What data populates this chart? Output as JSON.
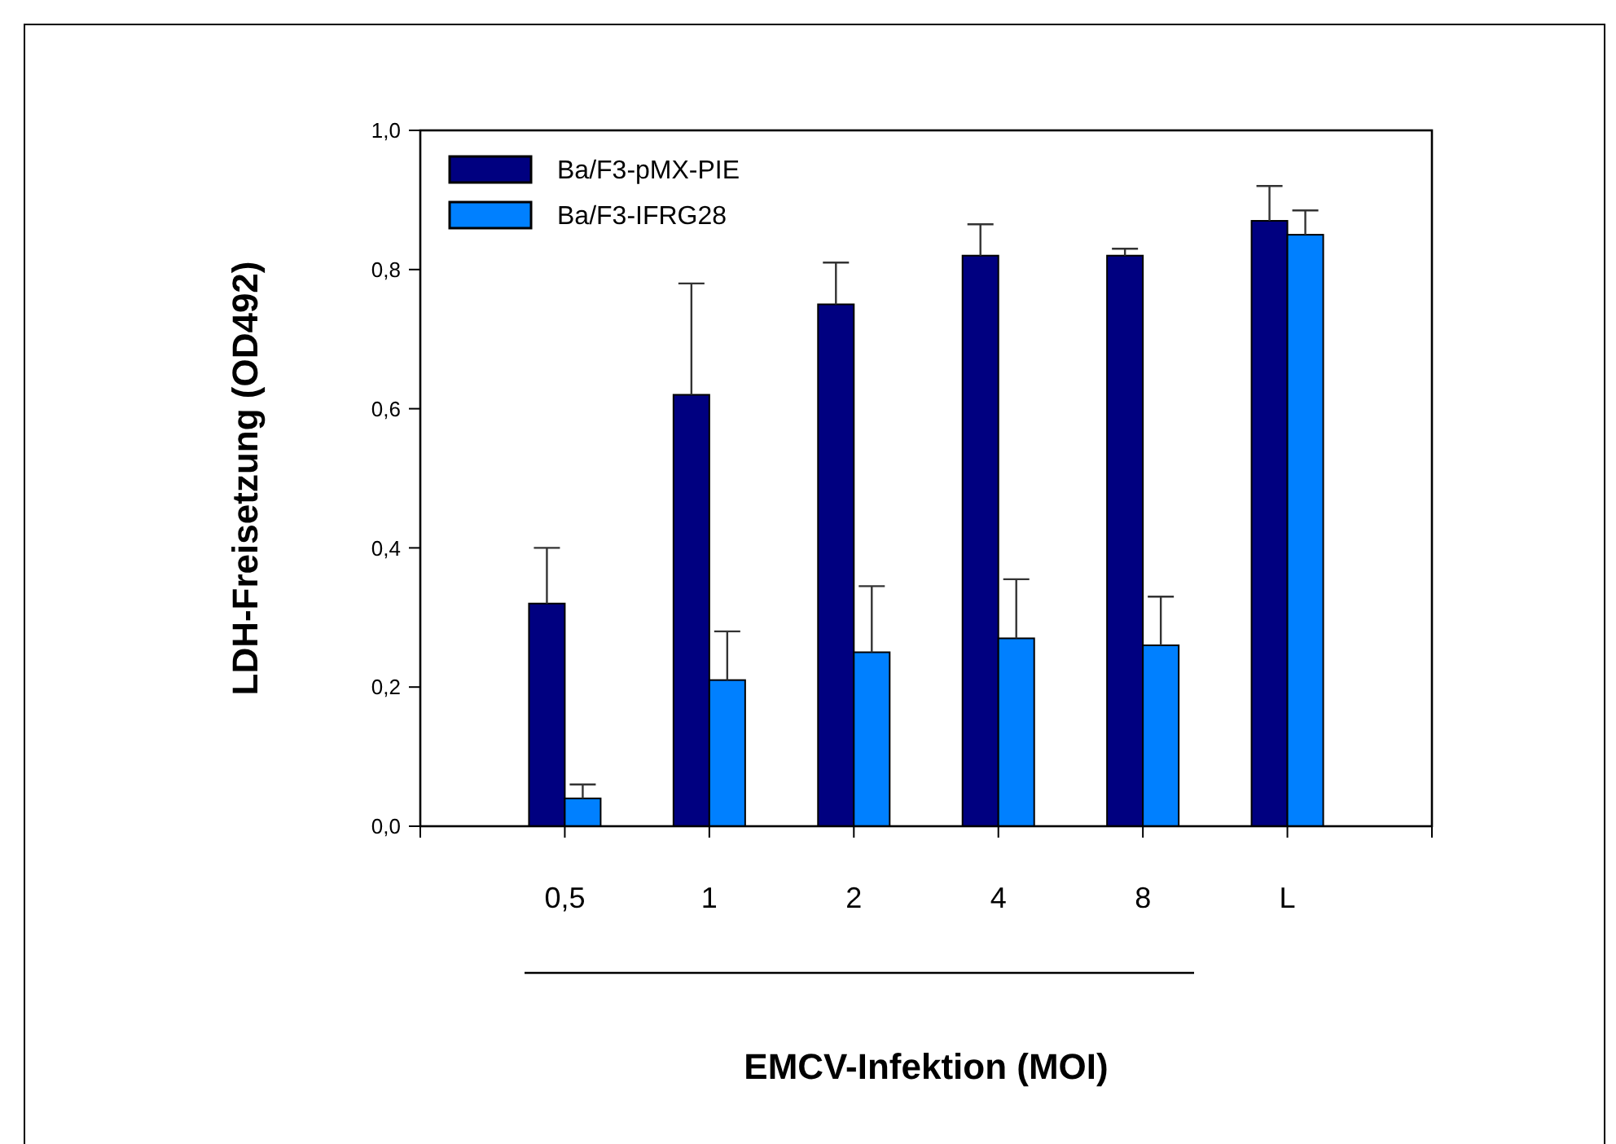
{
  "chart_data": {
    "type": "bar",
    "xlabel": "EMCV-Infektion (MOI)",
    "ylabel": "LDH-Freisetzung (OD492)",
    "categories": [
      "0,5",
      "1",
      "2",
      "4",
      "8",
      "L"
    ],
    "series": [
      {
        "name": "Ba/F3-pMX-PIE",
        "color": "#000080",
        "values": [
          0.32,
          0.62,
          0.75,
          0.82,
          0.82,
          0.87
        ],
        "errors": [
          [
            0.32,
            0.4
          ],
          [
            0.62,
            0.78
          ],
          [
            0.75,
            0.81
          ],
          [
            0.82,
            0.865
          ],
          [
            0.82,
            0.83
          ],
          [
            0.87,
            0.92
          ]
        ]
      },
      {
        "name": "Ba/F3-IFRG28",
        "color": "#0080ff",
        "values": [
          0.04,
          0.21,
          0.25,
          0.27,
          0.26,
          0.85
        ],
        "errors": [
          [
            0.04,
            0.06
          ],
          [
            0.21,
            0.28
          ],
          [
            0.25,
            0.345
          ],
          [
            0.27,
            0.355
          ],
          [
            0.26,
            0.33
          ],
          [
            0.85,
            0.885
          ]
        ]
      }
    ],
    "ylim": [
      0,
      1
    ],
    "yticks": [
      {
        "value": 0,
        "label": "0,0"
      },
      {
        "value": 0.2,
        "label": "0,2"
      },
      {
        "value": 0.4,
        "label": "0,4"
      },
      {
        "value": 0.6,
        "label": "0,6"
      },
      {
        "value": 0.8,
        "label": "0,8"
      },
      {
        "value": 1,
        "label": "1,0"
      }
    ],
    "grid": false,
    "legend": "top left"
  }
}
